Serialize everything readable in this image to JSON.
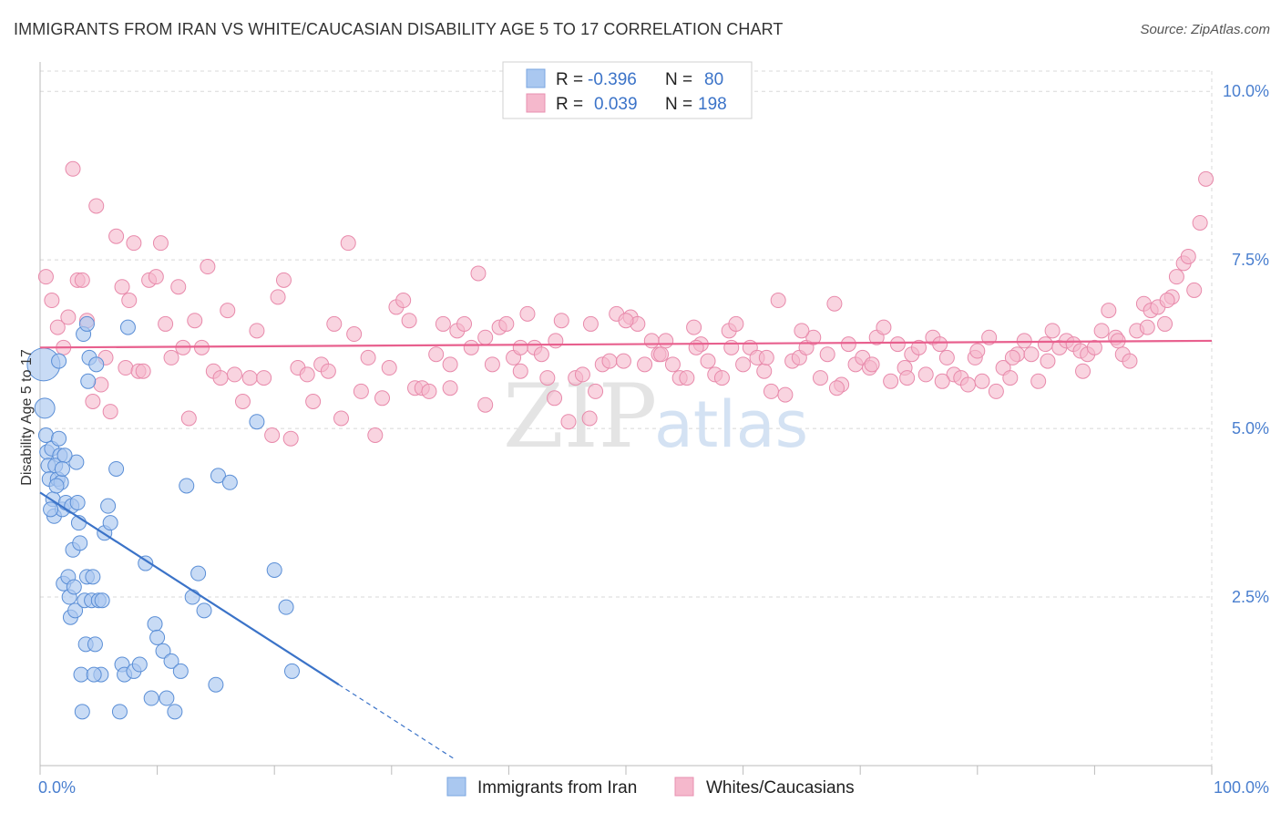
{
  "title": "IMMIGRANTS FROM IRAN VS WHITE/CAUCASIAN DISABILITY AGE 5 TO 17 CORRELATION CHART",
  "source": "Source: ZipAtlas.com",
  "watermark": {
    "zip": "ZIP",
    "atlas": "atlas"
  },
  "colors": {
    "blue": "#3b73c8",
    "blue_fill": "#aac8f0",
    "pink": "#e8608e",
    "pink_fill": "#f5b8cc",
    "grid": "#d8d8d8",
    "tick": "#4a7fcf"
  },
  "legend": {
    "rows": [
      {
        "r_label": "R =",
        "r_value": "-0.396",
        "n_label": "N =",
        "n_value": "80"
      },
      {
        "r_label": "R =",
        "r_value": "0.039",
        "n_label": "N =",
        "n_value": "198"
      }
    ]
  },
  "bottom_legend": [
    "Immigrants from Iran",
    "Whites/Caucasians"
  ],
  "chart_data": {
    "type": "scatter",
    "title": "IMMIGRANTS FROM IRAN VS WHITE/CAUCASIAN DISABILITY AGE 5 TO 17 CORRELATION CHART",
    "xlabel": "",
    "ylabel": "Disability Age 5 to 17",
    "xlim": [
      0,
      100
    ],
    "ylim": [
      0,
      10.3
    ],
    "x_tick_labels": [
      "0.0%",
      "100.0%"
    ],
    "y_ticks": [
      2.5,
      5.0,
      7.5,
      10.0
    ],
    "y_tick_labels": [
      "2.5%",
      "5.0%",
      "7.5%",
      "10.0%"
    ],
    "series": [
      {
        "name": "Immigrants from Iran",
        "R": -0.396,
        "N": 80,
        "trend": {
          "x0": 0,
          "y0": 4.05,
          "x1": 25.5,
          "y1": 1.2,
          "dash_to_x": 35.5
        },
        "points": [
          [
            0.3,
            5.95
          ],
          [
            0.4,
            5.3
          ],
          [
            0.5,
            4.9
          ],
          [
            0.6,
            4.65
          ],
          [
            0.7,
            4.45
          ],
          [
            0.8,
            4.25
          ],
          [
            1.0,
            4.7
          ],
          [
            1.1,
            3.95
          ],
          [
            1.2,
            3.7
          ],
          [
            1.5,
            4.25
          ],
          [
            1.6,
            4.85
          ],
          [
            1.7,
            4.6
          ],
          [
            1.8,
            4.2
          ],
          [
            1.9,
            3.8
          ],
          [
            2.0,
            2.7
          ],
          [
            2.2,
            3.9
          ],
          [
            2.4,
            2.8
          ],
          [
            2.5,
            2.5
          ],
          [
            2.6,
            2.2
          ],
          [
            2.8,
            3.2
          ],
          [
            2.9,
            2.65
          ],
          [
            3.0,
            2.3
          ],
          [
            3.1,
            4.5
          ],
          [
            3.3,
            3.6
          ],
          [
            3.4,
            3.3
          ],
          [
            3.5,
            1.35
          ],
          [
            3.6,
            0.8
          ],
          [
            3.8,
            2.45
          ],
          [
            3.9,
            1.8
          ],
          [
            4.0,
            2.8
          ],
          [
            4.1,
            5.7
          ],
          [
            4.2,
            6.05
          ],
          [
            4.4,
            2.45
          ],
          [
            4.5,
            2.8
          ],
          [
            4.7,
            1.8
          ],
          [
            4.8,
            5.95
          ],
          [
            3.7,
            6.4
          ],
          [
            4.0,
            6.55
          ],
          [
            5.0,
            2.45
          ],
          [
            5.2,
            1.35
          ],
          [
            5.5,
            3.45
          ],
          [
            5.8,
            3.85
          ],
          [
            6.0,
            3.6
          ],
          [
            6.5,
            4.4
          ],
          [
            6.8,
            0.8
          ],
          [
            7.0,
            1.5
          ],
          [
            7.2,
            1.35
          ],
          [
            7.5,
            6.5
          ],
          [
            8.0,
            1.4
          ],
          [
            8.5,
            1.5
          ],
          [
            9.0,
            3.0
          ],
          [
            9.8,
            2.1
          ],
          [
            10.0,
            1.9
          ],
          [
            10.5,
            1.7
          ],
          [
            10.8,
            1.0
          ],
          [
            11.2,
            1.55
          ],
          [
            11.5,
            0.8
          ],
          [
            12.0,
            1.4
          ],
          [
            12.5,
            4.15
          ],
          [
            13.0,
            2.5
          ],
          [
            13.5,
            2.85
          ],
          [
            14.0,
            2.3
          ],
          [
            15.0,
            1.2
          ],
          [
            15.2,
            4.3
          ],
          [
            16.2,
            4.2
          ],
          [
            18.5,
            5.1
          ],
          [
            20.0,
            2.9
          ],
          [
            21.0,
            2.35
          ],
          [
            21.5,
            1.4
          ],
          [
            1.3,
            4.45
          ],
          [
            2.1,
            4.6
          ],
          [
            0.9,
            3.8
          ],
          [
            1.4,
            4.15
          ],
          [
            2.7,
            3.85
          ],
          [
            3.2,
            3.9
          ],
          [
            1.9,
            4.4
          ],
          [
            5.3,
            2.45
          ],
          [
            4.6,
            1.35
          ],
          [
            1.6,
            6.0
          ],
          [
            9.5,
            1.0
          ]
        ]
      },
      {
        "name": "Whites/Caucasians",
        "R": 0.039,
        "N": 198,
        "trend": {
          "x0": 0,
          "y0": 6.2,
          "x1": 100,
          "y1": 6.3
        },
        "points": [
          [
            0.5,
            7.25
          ],
          [
            1.0,
            6.9
          ],
          [
            1.5,
            6.5
          ],
          [
            2.0,
            6.2
          ],
          [
            2.4,
            6.65
          ],
          [
            2.8,
            8.85
          ],
          [
            3.2,
            7.2
          ],
          [
            3.6,
            7.2
          ],
          [
            4.0,
            6.6
          ],
          [
            4.5,
            5.4
          ],
          [
            4.8,
            8.3
          ],
          [
            5.2,
            5.65
          ],
          [
            5.6,
            6.05
          ],
          [
            6.0,
            5.25
          ],
          [
            6.5,
            7.85
          ],
          [
            7.0,
            7.1
          ],
          [
            7.3,
            5.9
          ],
          [
            7.6,
            6.9
          ],
          [
            8.0,
            7.75
          ],
          [
            8.4,
            5.85
          ],
          [
            8.8,
            5.85
          ],
          [
            9.3,
            7.2
          ],
          [
            9.9,
            7.25
          ],
          [
            10.3,
            7.75
          ],
          [
            10.7,
            6.55
          ],
          [
            11.2,
            6.05
          ],
          [
            11.8,
            7.1
          ],
          [
            12.2,
            6.2
          ],
          [
            12.7,
            5.15
          ],
          [
            13.2,
            6.6
          ],
          [
            13.8,
            6.2
          ],
          [
            14.3,
            7.4
          ],
          [
            14.8,
            5.85
          ],
          [
            15.4,
            5.75
          ],
          [
            16.0,
            6.75
          ],
          [
            16.6,
            5.8
          ],
          [
            17.3,
            5.4
          ],
          [
            17.9,
            5.75
          ],
          [
            18.5,
            6.45
          ],
          [
            19.1,
            5.75
          ],
          [
            19.8,
            4.9
          ],
          [
            20.3,
            6.95
          ],
          [
            20.8,
            7.2
          ],
          [
            21.4,
            4.85
          ],
          [
            22.0,
            5.9
          ],
          [
            22.8,
            5.8
          ],
          [
            23.3,
            5.4
          ],
          [
            24.0,
            5.95
          ],
          [
            24.6,
            5.85
          ],
          [
            25.1,
            6.55
          ],
          [
            25.7,
            5.15
          ],
          [
            26.3,
            7.75
          ],
          [
            26.8,
            6.4
          ],
          [
            27.4,
            5.55
          ],
          [
            28.0,
            6.05
          ],
          [
            28.6,
            4.9
          ],
          [
            29.2,
            5.45
          ],
          [
            29.8,
            5.9
          ],
          [
            30.4,
            6.8
          ],
          [
            31.0,
            6.9
          ],
          [
            31.5,
            6.6
          ],
          [
            32.0,
            5.6
          ],
          [
            32.6,
            5.6
          ],
          [
            33.2,
            5.55
          ],
          [
            33.8,
            6.1
          ],
          [
            34.4,
            6.55
          ],
          [
            35.0,
            5.6
          ],
          [
            35.6,
            6.45
          ],
          [
            36.2,
            6.55
          ],
          [
            36.8,
            6.2
          ],
          [
            37.4,
            7.3
          ],
          [
            38.0,
            5.35
          ],
          [
            38.6,
            5.95
          ],
          [
            39.2,
            6.5
          ],
          [
            39.8,
            6.55
          ],
          [
            40.4,
            6.05
          ],
          [
            41.0,
            5.85
          ],
          [
            41.6,
            6.7
          ],
          [
            42.2,
            6.2
          ],
          [
            42.8,
            6.1
          ],
          [
            43.3,
            5.75
          ],
          [
            43.9,
            5.45
          ],
          [
            44.5,
            6.6
          ],
          [
            45.1,
            5.1
          ],
          [
            45.7,
            5.75
          ],
          [
            46.3,
            5.8
          ],
          [
            46.9,
            5.15
          ],
          [
            47.4,
            5.55
          ],
          [
            48.0,
            5.95
          ],
          [
            48.6,
            6.0
          ],
          [
            49.2,
            6.7
          ],
          [
            49.8,
            6.0
          ],
          [
            50.4,
            6.65
          ],
          [
            51.0,
            6.55
          ],
          [
            51.6,
            5.95
          ],
          [
            52.2,
            6.3
          ],
          [
            52.8,
            6.1
          ],
          [
            53.4,
            6.3
          ],
          [
            54.0,
            5.95
          ],
          [
            54.6,
            5.75
          ],
          [
            55.2,
            5.75
          ],
          [
            55.8,
            6.5
          ],
          [
            56.4,
            6.25
          ],
          [
            57.0,
            6.0
          ],
          [
            57.6,
            5.8
          ],
          [
            58.2,
            5.75
          ],
          [
            58.8,
            6.45
          ],
          [
            59.4,
            6.55
          ],
          [
            60.0,
            5.95
          ],
          [
            60.6,
            6.2
          ],
          [
            61.2,
            6.05
          ],
          [
            61.8,
            5.85
          ],
          [
            62.4,
            5.55
          ],
          [
            63.0,
            6.9
          ],
          [
            63.6,
            5.5
          ],
          [
            64.2,
            6.0
          ],
          [
            64.8,
            6.05
          ],
          [
            65.4,
            6.2
          ],
          [
            66.0,
            6.35
          ],
          [
            66.6,
            5.75
          ],
          [
            67.2,
            6.1
          ],
          [
            67.8,
            6.85
          ],
          [
            68.4,
            5.65
          ],
          [
            69.0,
            6.25
          ],
          [
            69.6,
            5.95
          ],
          [
            70.2,
            6.05
          ],
          [
            70.8,
            5.9
          ],
          [
            71.4,
            6.35
          ],
          [
            72.0,
            6.5
          ],
          [
            72.6,
            5.7
          ],
          [
            73.2,
            6.25
          ],
          [
            73.8,
            5.9
          ],
          [
            74.4,
            6.1
          ],
          [
            75.0,
            6.2
          ],
          [
            75.6,
            5.8
          ],
          [
            76.2,
            6.35
          ],
          [
            76.8,
            6.25
          ],
          [
            77.4,
            6.05
          ],
          [
            78.0,
            5.8
          ],
          [
            78.6,
            5.75
          ],
          [
            79.2,
            5.65
          ],
          [
            79.8,
            6.05
          ],
          [
            80.4,
            5.7
          ],
          [
            81.0,
            6.35
          ],
          [
            81.6,
            5.55
          ],
          [
            82.2,
            5.9
          ],
          [
            82.8,
            5.75
          ],
          [
            83.4,
            6.1
          ],
          [
            84.0,
            6.3
          ],
          [
            84.6,
            6.1
          ],
          [
            85.2,
            5.7
          ],
          [
            85.8,
            6.25
          ],
          [
            86.4,
            6.45
          ],
          [
            87.0,
            6.2
          ],
          [
            87.6,
            6.3
          ],
          [
            88.2,
            6.25
          ],
          [
            88.8,
            6.15
          ],
          [
            89.4,
            6.1
          ],
          [
            90.0,
            6.2
          ],
          [
            90.6,
            6.45
          ],
          [
            91.2,
            6.75
          ],
          [
            91.8,
            6.35
          ],
          [
            92.4,
            6.1
          ],
          [
            93.0,
            6.0
          ],
          [
            93.6,
            6.45
          ],
          [
            94.2,
            6.85
          ],
          [
            94.8,
            6.75
          ],
          [
            95.4,
            6.8
          ],
          [
            96.0,
            6.55
          ],
          [
            96.6,
            6.95
          ],
          [
            97.0,
            7.25
          ],
          [
            97.6,
            7.45
          ],
          [
            98.0,
            7.55
          ],
          [
            98.5,
            7.05
          ],
          [
            99.0,
            8.05
          ],
          [
            99.5,
            8.7
          ],
          [
            96.2,
            6.9
          ],
          [
            94.5,
            6.5
          ],
          [
            92.0,
            6.3
          ],
          [
            89.0,
            5.85
          ],
          [
            86.0,
            6.0
          ],
          [
            83.0,
            6.05
          ],
          [
            80.0,
            6.15
          ],
          [
            77.0,
            5.7
          ],
          [
            74.0,
            5.75
          ],
          [
            71.0,
            5.95
          ],
          [
            68.0,
            5.6
          ],
          [
            65.0,
            6.45
          ],
          [
            62.0,
            6.05
          ],
          [
            59.0,
            6.2
          ],
          [
            56.0,
            6.2
          ],
          [
            53.0,
            6.1
          ],
          [
            50.0,
            6.6
          ],
          [
            47.0,
            6.55
          ],
          [
            44.0,
            6.3
          ],
          [
            41.0,
            6.2
          ],
          [
            38.0,
            6.35
          ],
          [
            35.0,
            5.95
          ]
        ]
      }
    ]
  }
}
